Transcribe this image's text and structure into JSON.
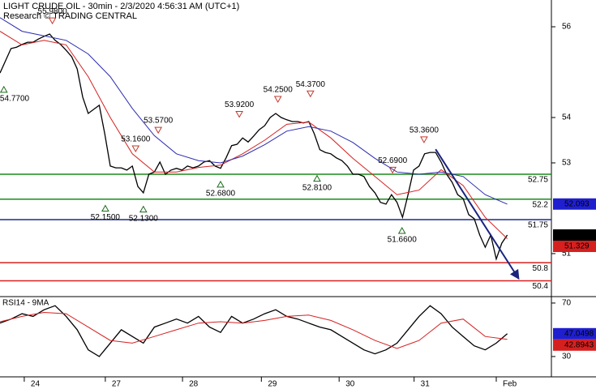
{
  "chart_data": [
    {
      "type": "line",
      "title": "LIGHT CRUDE OIL - 30min - 2/3/2020 4:56:31 AM (UTC+1)",
      "subtitle": "Research © TRADING CENTRAL",
      "xlim": [
        0,
        100
      ],
      "xticks": [
        {
          "value": 4.4,
          "label": "24"
        },
        {
          "value": 19.1,
          "label": "27"
        },
        {
          "value": 33.1,
          "label": "28"
        },
        {
          "value": 47.4,
          "label": "29"
        },
        {
          "value": 61.5,
          "label": "30"
        },
        {
          "value": 75.1,
          "label": "31"
        },
        {
          "value": 90,
          "label": "Feb"
        }
      ],
      "ylim": [
        50.07,
        56.59
      ],
      "yticks": [
        56,
        54,
        53,
        51
      ],
      "series": [
        {
          "color": "#000000",
          "x": [
            0,
            1,
            2,
            3,
            4,
            5,
            6,
            7,
            8,
            9,
            10,
            11,
            12,
            13,
            14,
            15,
            16,
            17,
            18,
            19,
            20,
            21,
            22,
            23,
            24,
            25,
            26,
            27,
            28,
            29,
            30,
            31,
            32,
            33,
            34,
            35,
            36,
            37,
            38,
            39,
            40,
            41,
            42,
            43,
            44,
            45,
            46,
            47,
            48,
            49,
            50,
            51,
            52,
            53,
            54,
            55,
            56,
            57,
            58,
            59,
            60,
            61,
            62,
            63,
            64,
            65,
            66,
            67,
            68,
            69,
            70,
            71,
            72,
            73,
            74,
            75,
            76,
            77,
            78,
            79,
            80,
            81,
            82,
            83,
            84,
            85,
            86,
            87,
            88,
            89,
            90,
            91,
            92
          ],
          "values": [
            54.98,
            55.25,
            55.52,
            55.55,
            55.61,
            55.66,
            55.66,
            55.73,
            55.79,
            55.84,
            55.7,
            55.61,
            55.48,
            55.34,
            55.07,
            54.45,
            54.09,
            54.18,
            54.27,
            53.64,
            52.93,
            52.89,
            52.89,
            52.84,
            52.93,
            52.48,
            52.34,
            52.75,
            52.8,
            53.02,
            52.75,
            52.84,
            52.88,
            52.84,
            52.93,
            52.89,
            52.93,
            53.02,
            53.05,
            52.93,
            52.88,
            53.11,
            53.38,
            53.41,
            53.55,
            53.46,
            53.59,
            53.73,
            53.82,
            54.0,
            54.09,
            54.0,
            53.95,
            53.91,
            53.91,
            53.88,
            53.91,
            53.64,
            53.29,
            53.23,
            53.2,
            53.11,
            53.05,
            52.93,
            52.75,
            52.75,
            52.7,
            52.48,
            52.34,
            52.13,
            52.09,
            52.3,
            52.13,
            51.8,
            52.3,
            52.84,
            52.93,
            53.2,
            53.23,
            53.23,
            53.02,
            52.75,
            52.57,
            52.3,
            52.21,
            51.86,
            51.77,
            51.41,
            51.14,
            51.41,
            50.88,
            51.23,
            51.41
          ]
        },
        {
          "color": "#d62020",
          "x": [
            0,
            4,
            8,
            12,
            16,
            20,
            24,
            28,
            32,
            36,
            40,
            44,
            48,
            52,
            56,
            60,
            64,
            68,
            72,
            76,
            80,
            84,
            88,
            92
          ],
          "values": [
            55.9,
            55.6,
            55.7,
            55.6,
            54.9,
            54.0,
            53.2,
            52.8,
            52.8,
            52.9,
            52.95,
            53.2,
            53.5,
            53.85,
            53.9,
            53.55,
            53.1,
            52.7,
            52.3,
            52.4,
            52.85,
            52.5,
            51.8,
            51.33
          ]
        },
        {
          "color": "#2b2bb0",
          "x": [
            0,
            4,
            8,
            12,
            16,
            20,
            24,
            28,
            32,
            36,
            40,
            44,
            48,
            52,
            56,
            60,
            64,
            68,
            72,
            76,
            80,
            84,
            88,
            92
          ],
          "values": [
            56.2,
            55.9,
            55.8,
            55.7,
            55.4,
            54.9,
            54.2,
            53.6,
            53.2,
            53.05,
            53.0,
            53.15,
            53.4,
            53.7,
            53.8,
            53.7,
            53.45,
            53.1,
            52.8,
            52.75,
            52.8,
            52.7,
            52.3,
            52.09
          ]
        }
      ],
      "levels": [
        {
          "value": 52.75,
          "color": "#1a8a1a"
        },
        {
          "value": 52.2,
          "color": "#1a8a1a"
        },
        {
          "value": 51.75,
          "color": "#1f2a8a"
        },
        {
          "value": 50.8,
          "color": "#d62020"
        },
        {
          "value": 50.4,
          "color": "#d62020"
        }
      ],
      "tags": [
        {
          "value": 52.093,
          "color": "#1f1fd0"
        },
        {
          "value": 51.41,
          "color": "#000000"
        },
        {
          "value": 51.329,
          "color": "#d62020"
        }
      ],
      "annotations": [
        {
          "x": 0.7,
          "value": 54.77,
          "label": "54.7700",
          "kind": "low"
        },
        {
          "x": 9.5,
          "value": 55.98,
          "label": "55.9800",
          "kind": "high"
        },
        {
          "x": 19.1,
          "value": 52.15,
          "label": "52.1500",
          "kind": "low"
        },
        {
          "x": 24.6,
          "value": 53.16,
          "label": "53.1600",
          "kind": "high"
        },
        {
          "x": 26,
          "value": 52.13,
          "label": "52.1300",
          "kind": "low"
        },
        {
          "x": 28.7,
          "value": 53.57,
          "label": "53.5700",
          "kind": "high"
        },
        {
          "x": 40,
          "value": 52.68,
          "label": "52.6800",
          "kind": "low"
        },
        {
          "x": 43.4,
          "value": 53.92,
          "label": "53.9200",
          "kind": "high"
        },
        {
          "x": 50.4,
          "value": 54.25,
          "label": "54.2500",
          "kind": "high"
        },
        {
          "x": 56.3,
          "value": 54.37,
          "label": "54.3700",
          "kind": "high"
        },
        {
          "x": 57.5,
          "value": 52.81,
          "label": "52.8100",
          "kind": "low"
        },
        {
          "x": 71.2,
          "value": 52.69,
          "label": "52.6900",
          "kind": "high"
        },
        {
          "x": 72.9,
          "value": 51.66,
          "label": "51.6600",
          "kind": "low"
        },
        {
          "x": 76.9,
          "value": 53.36,
          "label": "53.3600",
          "kind": "high"
        }
      ],
      "trendline": {
        "color": "#1a237e",
        "x": [
          79,
          94
        ],
        "values": [
          53.3,
          50.46
        ]
      }
    },
    {
      "type": "line",
      "title": "RSI14 - 9MA",
      "xlim": [
        0,
        100
      ],
      "ylim": [
        14.8,
        73.6
      ],
      "yticks": [
        70,
        30
      ],
      "series": [
        {
          "color": "#000000",
          "x": [
            0,
            2,
            4,
            6,
            8,
            10,
            12,
            14,
            16,
            18,
            20,
            22,
            24,
            26,
            28,
            30,
            32,
            34,
            36,
            38,
            40,
            42,
            44,
            46,
            48,
            50,
            52,
            54,
            56,
            58,
            60,
            62,
            64,
            66,
            68,
            70,
            72,
            74,
            76,
            78,
            80,
            82,
            84,
            86,
            88,
            90,
            92
          ],
          "values": [
            55,
            58,
            62,
            60,
            65,
            68,
            60,
            50,
            35,
            30,
            40,
            50,
            45,
            40,
            52,
            55,
            58,
            55,
            60,
            52,
            48,
            60,
            55,
            58,
            62,
            65,
            60,
            58,
            55,
            52,
            50,
            45,
            40,
            35,
            32,
            35,
            40,
            50,
            60,
            68,
            62,
            52,
            45,
            38,
            35,
            40,
            47.0498
          ]
        },
        {
          "color": "#d62020",
          "x": [
            0,
            4,
            8,
            12,
            16,
            20,
            24,
            28,
            32,
            36,
            40,
            44,
            48,
            52,
            56,
            60,
            64,
            68,
            72,
            76,
            80,
            84,
            88,
            92
          ],
          "values": [
            56,
            60,
            63,
            62,
            52,
            42,
            40,
            45,
            50,
            55,
            56,
            55,
            57,
            60,
            61,
            57,
            50,
            42,
            36,
            42,
            55,
            58,
            45,
            42.8943
          ]
        }
      ],
      "tags": [
        {
          "value": 47.0498,
          "color": "#1f1fd0"
        },
        {
          "value": 42.8943,
          "color": "#d62020"
        }
      ]
    }
  ]
}
